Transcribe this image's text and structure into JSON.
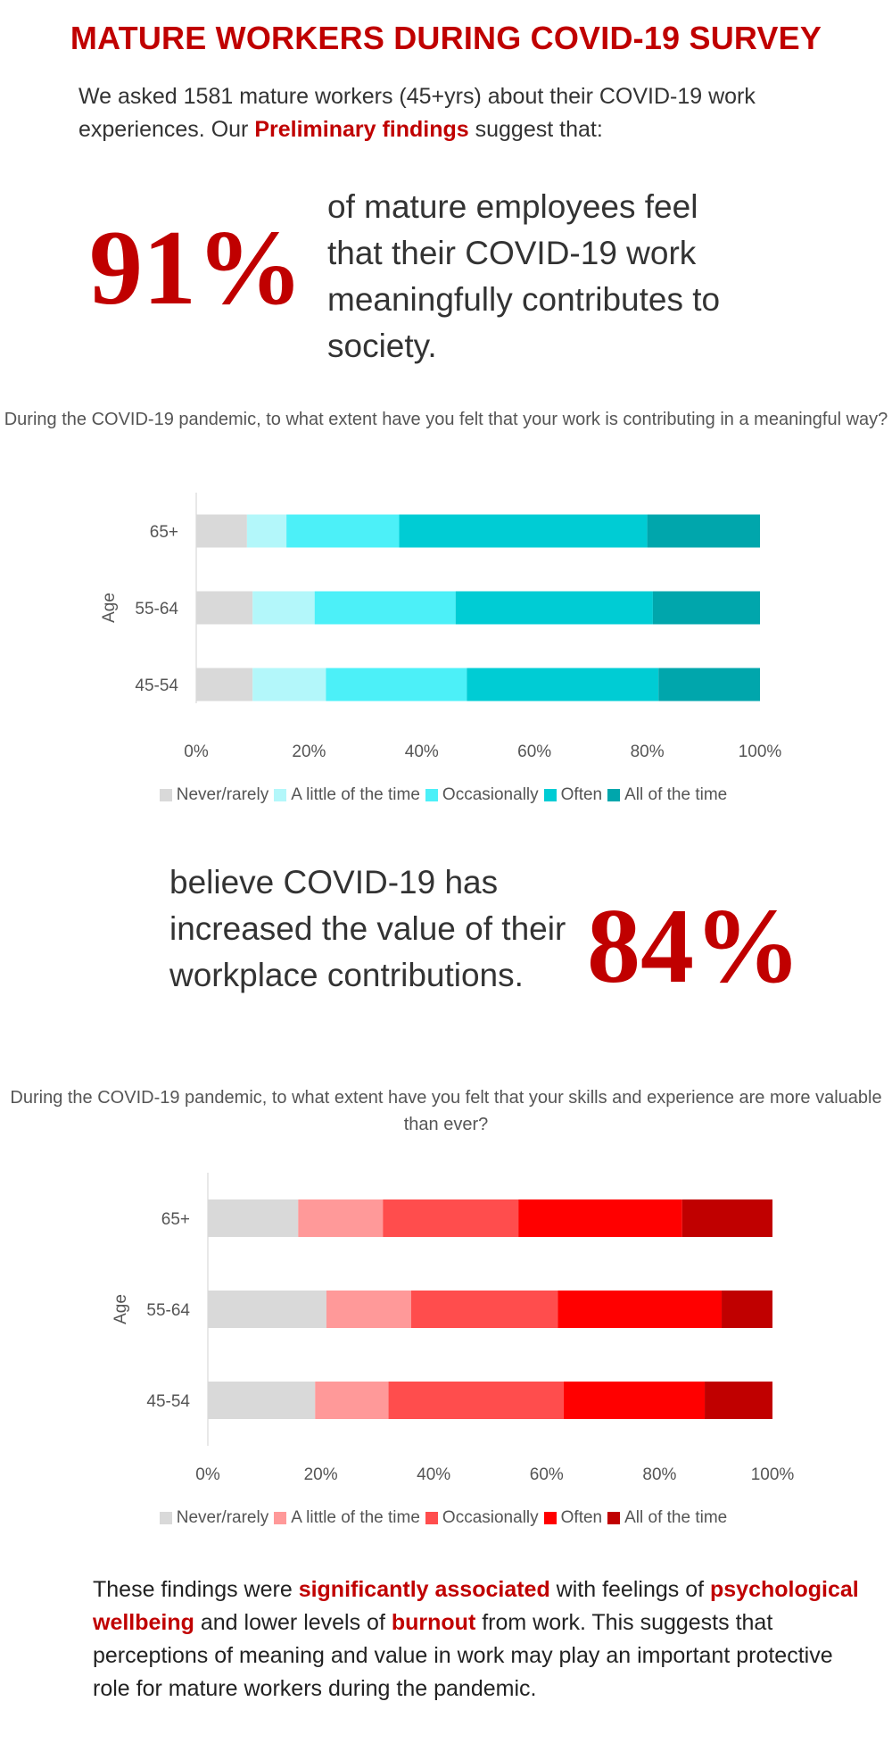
{
  "title": "MATURE WORKERS DURING COVID-19 SURVEY",
  "intro": {
    "part1": "We asked 1581 mature workers (45+yrs) about their COVID-19 work experiences. Our ",
    "highlight": "Preliminary findings",
    "part2": " suggest that:"
  },
  "stat1": {
    "value": "91%",
    "text": "of mature employees feel that their COVID-19 work meaningfully contributes to society."
  },
  "stat2": {
    "value": "84%",
    "text": "believe COVID-19 has increased the value of their workplace contributions."
  },
  "conclusion": {
    "p1": "These findings were ",
    "h1": "significantly associated",
    "p2": " with feelings of ",
    "h2": "psychological wellbeing",
    "p3": " and lower levels of ",
    "h3": "burnout",
    "p4": " from work. This suggests that perceptions of meaning and value in work may play an important protective role for mature workers during the pandemic."
  },
  "chart_data": [
    {
      "type": "bar",
      "orientation": "horizontal",
      "stacked": "percent",
      "title": "During the COVID-19 pandemic, to what extent have you felt that your work is contributing in a meaningful way?",
      "ylabel": "Age",
      "xlabel": "",
      "xlim": [
        0,
        100
      ],
      "xticks": [
        "0%",
        "20%",
        "40%",
        "60%",
        "80%",
        "100%"
      ],
      "categories": [
        "65+",
        "55-64",
        "45-54"
      ],
      "legend_position": "bottom",
      "grid": false,
      "series": [
        {
          "name": "Never/rarely",
          "color": "#d9d9d9",
          "values": [
            9,
            10,
            10
          ]
        },
        {
          "name": "A little of the time",
          "color": "#b3f7fa",
          "values": [
            7,
            11,
            13
          ]
        },
        {
          "name": "Occasionally",
          "color": "#4cf0f8",
          "values": [
            20,
            25,
            25
          ]
        },
        {
          "name": "Often",
          "color": "#00ccd4",
          "values": [
            44,
            35,
            34
          ]
        },
        {
          "name": "All of the time",
          "color": "#00a6ac",
          "values": [
            20,
            19,
            18
          ]
        }
      ]
    },
    {
      "type": "bar",
      "orientation": "horizontal",
      "stacked": "percent",
      "title": "During the COVID-19 pandemic, to what extent have you felt that your skills and experience are more valuable than ever?",
      "ylabel": "Age",
      "xlabel": "",
      "xlim": [
        0,
        100
      ],
      "xticks": [
        "0%",
        "20%",
        "40%",
        "60%",
        "80%",
        "100%"
      ],
      "categories": [
        "65+",
        "55-64",
        "45-54"
      ],
      "legend_position": "bottom",
      "grid": false,
      "series": [
        {
          "name": "Never/rarely",
          "color": "#d9d9d9",
          "values": [
            16,
            21,
            19
          ]
        },
        {
          "name": "A little of the time",
          "color": "#ff9999",
          "values": [
            15,
            15,
            13
          ]
        },
        {
          "name": "Occasionally",
          "color": "#ff4d4d",
          "values": [
            24,
            26,
            31
          ]
        },
        {
          "name": "Often",
          "color": "#ff0000",
          "values": [
            29,
            29,
            25
          ]
        },
        {
          "name": "All of the time",
          "color": "#c00000",
          "values": [
            16,
            9,
            12
          ]
        }
      ]
    }
  ]
}
